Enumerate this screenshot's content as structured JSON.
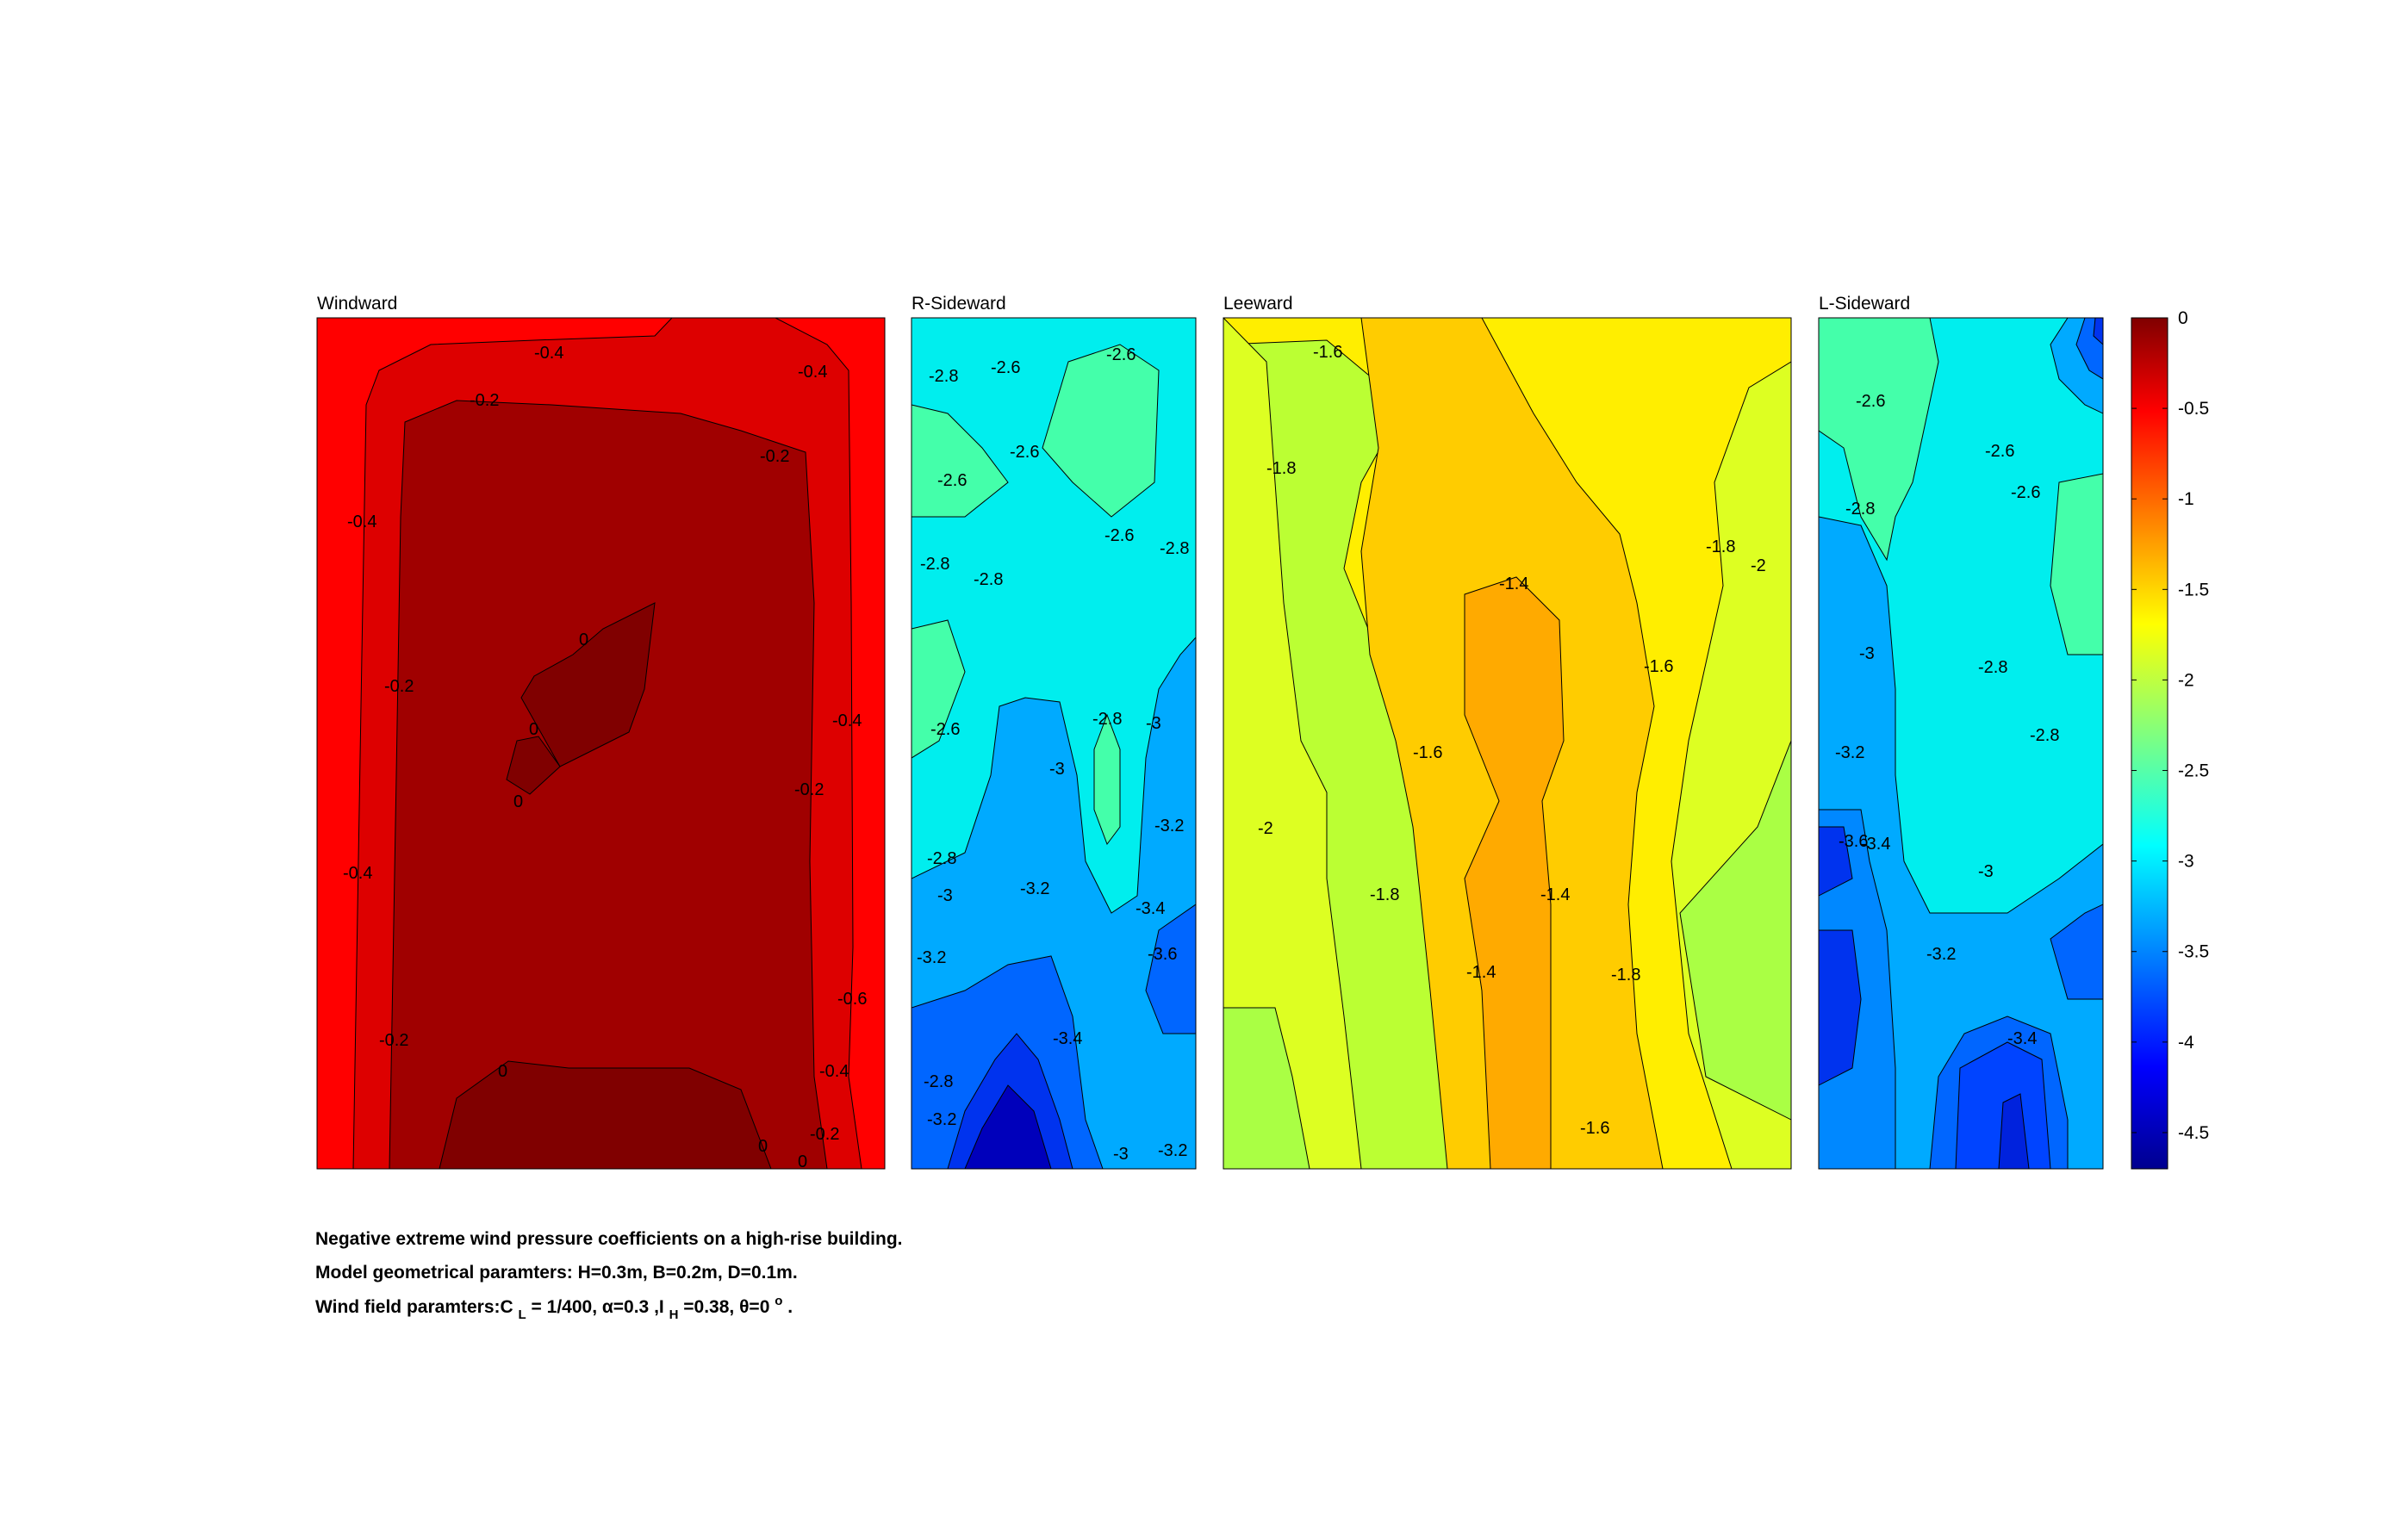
{
  "chart_data": {
    "type": "heatmap",
    "subtype": "filled-contour",
    "colormap": "jet",
    "panels": [
      {
        "title": "Windward",
        "levels": [
          0,
          -0.2,
          -0.4,
          -0.6
        ],
        "contour_labels": [
          "-0.4",
          "-0.4",
          "-0.2",
          "-0.2",
          "-0.4",
          "-0.2",
          "0",
          "0",
          "0",
          "-0.4",
          "-0.2",
          "-0.4",
          "-0.6",
          "-0.2",
          "-0.4",
          "0",
          "-0.2",
          "0",
          "0"
        ]
      },
      {
        "title": "R-Sideward",
        "contour_labels": [
          "-2.8",
          "-2.6",
          "-2.6",
          "-2.6",
          "-2.6",
          "-2.6",
          "-2.8",
          "-2.8",
          "-2.8",
          "-2.6",
          "-2.8",
          "-3",
          "-3",
          "-3.2",
          "-2.8",
          "-3",
          "-3.2",
          "-3.4",
          "-3.2",
          "-3.6",
          "-3.4",
          "-2.8",
          "-3.2",
          "-3",
          "-3.2"
        ]
      },
      {
        "title": "Leeward",
        "contour_labels": [
          "-1.6",
          "-1.8",
          "-1.8",
          "-2",
          "-1.4",
          "-1.6",
          "-1.6",
          "-2",
          "-1.8",
          "-1.4",
          "-1.4",
          "-1.8",
          "-1.6"
        ]
      },
      {
        "title": "L-Sideward",
        "contour_labels": [
          "-2.6",
          "-2.6",
          "-2.6",
          "-2.8",
          "-3",
          "-2.8",
          "-2.8",
          "-3.2",
          "-3.6",
          "-3.4",
          "-3",
          "-3.2",
          "-3.4"
        ]
      }
    ],
    "colorbar": {
      "range": [
        -4.7,
        0
      ],
      "ticks": [
        0,
        -0.5,
        -1,
        -1.5,
        -2,
        -2.5,
        -3,
        -3.5,
        -4,
        -4.5
      ],
      "tick_labels": [
        "0",
        "-0.5",
        "-1",
        "-1.5",
        "-2",
        "-2.5",
        "-3",
        "-3.5",
        "-4",
        "-4.5"
      ]
    }
  },
  "caption": {
    "line1": "Negative extreme wind pressure coefficients on a high-rise building.",
    "line2": "Model geometrical paramters: H=0.3m, B=0.2m, D=0.1m.",
    "line3_prefix": "Wind field paramters:C",
    "line3_sub_L": "L",
    "line3_mid1": "= 1/400, α=0.3 ,I",
    "line3_sub_H": "H",
    "line3_mid2": "=0.38, θ=0",
    "line3_sup_o": "o",
    "line3_end": "."
  }
}
